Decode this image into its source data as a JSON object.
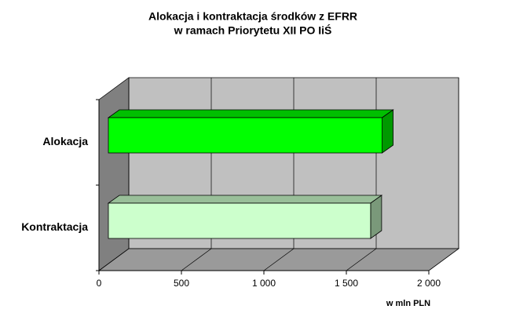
{
  "chart_data": {
    "type": "bar3d",
    "orientation": "horizontal",
    "title": [
      "Alokacja i kontraktacja środków z EFRR",
      "w ramach Priorytetu XII PO IiŚ"
    ],
    "categories": [
      "Alokacja",
      "Kontraktacja"
    ],
    "values": [
      1660,
      1590
    ],
    "colors": [
      "#00ff00",
      "#ccffcc"
    ],
    "xlim": [
      0,
      2000
    ],
    "xticks": [
      0,
      500,
      {
        "value": 1000,
        "label": "1 000"
      },
      {
        "value": 1500,
        "label": "1 500"
      },
      {
        "value": 2000,
        "label": "2 000"
      }
    ],
    "xlabel": "w mln PLN",
    "grid": true
  }
}
